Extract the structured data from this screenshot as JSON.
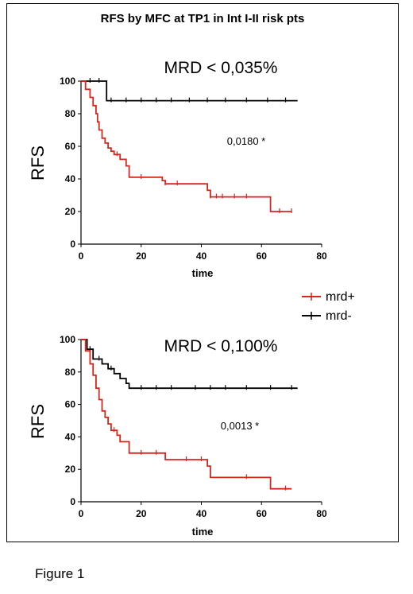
{
  "figure": {
    "title": "RFS by MFC at TP1 in Int I-II risk pts",
    "caption": "Figure 1"
  },
  "legend": [
    {
      "label": "mrd+",
      "color": "#d9261c"
    },
    {
      "label": "mrd-",
      "color": "#000000"
    }
  ],
  "chart_data": [
    {
      "type": "line",
      "title": "MRD < 0,035%",
      "xlabel": "time",
      "ylabel": "RFS",
      "xlim": [
        0,
        80
      ],
      "ylim": [
        0,
        100
      ],
      "xticks": [
        0,
        20,
        40,
        60,
        80
      ],
      "yticks": [
        0,
        20,
        40,
        60,
        80,
        100
      ],
      "annotation": {
        "text": "0,0180 *",
        "x": 60,
        "y": 64
      },
      "grid": false,
      "series": [
        {
          "name": "mrd-",
          "color": "#000000",
          "x": [
            0,
            8.5,
            8.5,
            72
          ],
          "y": [
            100,
            100,
            88,
            88
          ],
          "censors": [
            [
              3,
              100
            ],
            [
              6,
              100
            ],
            [
              10,
              88
            ],
            [
              15,
              88
            ],
            [
              20,
              88
            ],
            [
              25,
              88
            ],
            [
              30,
              88
            ],
            [
              36,
              88
            ],
            [
              42,
              88
            ],
            [
              48,
              88
            ],
            [
              55,
              88
            ],
            [
              62,
              88
            ],
            [
              68,
              88
            ]
          ]
        },
        {
          "name": "mrd+",
          "color": "#d9261c",
          "x": [
            0,
            1.5,
            1.5,
            3,
            3,
            4,
            4,
            5,
            5,
            5.5,
            5.5,
            6,
            6,
            7,
            7,
            8,
            8,
            9,
            9,
            10,
            10,
            11,
            11,
            13,
            13,
            15,
            15,
            16,
            16,
            27,
            27,
            28,
            28,
            42,
            42,
            43,
            43,
            63,
            63,
            70
          ],
          "y": [
            100,
            100,
            95,
            95,
            90,
            90,
            85,
            85,
            80,
            80,
            75,
            75,
            70,
            70,
            65,
            65,
            62,
            62,
            59,
            59,
            57,
            57,
            55,
            55,
            52,
            52,
            48,
            48,
            41,
            41,
            39,
            39,
            37,
            37,
            33,
            33,
            29,
            29,
            20,
            20
          ],
          "censors": [
            [
              12,
              55
            ],
            [
              20,
              41
            ],
            [
              28,
              37
            ],
            [
              32,
              37
            ],
            [
              43,
              29
            ],
            [
              45,
              29
            ],
            [
              47,
              29
            ],
            [
              51,
              29
            ],
            [
              55,
              29
            ],
            [
              66,
              20
            ],
            [
              70,
              20
            ]
          ]
        }
      ]
    },
    {
      "type": "line",
      "title": "MRD < 0,100%",
      "xlabel": "time",
      "ylabel": "RFS",
      "xlim": [
        0,
        80
      ],
      "ylim": [
        0,
        100
      ],
      "xticks": [
        0,
        20,
        40,
        60,
        80
      ],
      "yticks": [
        0,
        20,
        40,
        60,
        80,
        100
      ],
      "annotation": {
        "text": "0,0013 *",
        "x": 60,
        "y": 46
      },
      "grid": false,
      "series": [
        {
          "name": "mrd-",
          "color": "#000000",
          "x": [
            0,
            2,
            2,
            4,
            4,
            7,
            7,
            9,
            9,
            11,
            11,
            13,
            13,
            15,
            15,
            16,
            16,
            72
          ],
          "y": [
            100,
            100,
            94,
            94,
            88,
            88,
            85,
            85,
            82,
            82,
            79,
            79,
            76,
            76,
            73,
            73,
            70,
            70
          ],
          "censors": [
            [
              3,
              94
            ],
            [
              6,
              88
            ],
            [
              10,
              82
            ],
            [
              20,
              70
            ],
            [
              25,
              70
            ],
            [
              30,
              70
            ],
            [
              38,
              70
            ],
            [
              43,
              70
            ],
            [
              48,
              70
            ],
            [
              55,
              70
            ],
            [
              63,
              70
            ],
            [
              70,
              70
            ]
          ]
        },
        {
          "name": "mrd+",
          "color": "#d9261c",
          "x": [
            0,
            1.5,
            1.5,
            3,
            3,
            4,
            4,
            5,
            5,
            6,
            6,
            7,
            7,
            8,
            8,
            9,
            9,
            10,
            10,
            12,
            12,
            13,
            13,
            16,
            16,
            28,
            28,
            42,
            42,
            43,
            43,
            63,
            63,
            70
          ],
          "y": [
            100,
            100,
            93,
            93,
            85,
            85,
            78,
            78,
            70,
            70,
            63,
            63,
            56,
            56,
            52,
            52,
            48,
            48,
            44,
            44,
            41,
            41,
            37,
            37,
            30,
            30,
            26,
            26,
            22,
            22,
            15,
            15,
            8,
            8
          ],
          "censors": [
            [
              11,
              44
            ],
            [
              20,
              30
            ],
            [
              25,
              30
            ],
            [
              35,
              26
            ],
            [
              40,
              26
            ],
            [
              55,
              15
            ],
            [
              68,
              8
            ]
          ]
        }
      ]
    }
  ]
}
